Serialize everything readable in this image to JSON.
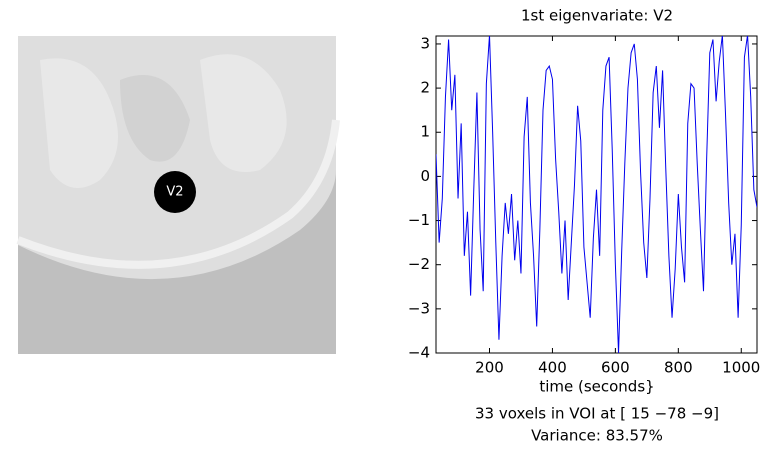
{
  "chart_data": {
    "type": "line",
    "title": "1st eigenvariate: V2",
    "xlabel": "time (seconds}",
    "image_label": "V2",
    "notes": [
      "33 voxels in VOI at [ 15 −78  −9]",
      "Variance: 83.57%"
    ],
    "xlim": [
      30,
      1050
    ],
    "ylim": [
      -4,
      3.18
    ],
    "xticks": [
      200,
      400,
      600,
      800,
      1000
    ],
    "yticks": [
      {
        "value": -4,
        "label": "−4"
      },
      {
        "value": -3,
        "label": "−3"
      },
      {
        "value": -2,
        "label": "−2"
      },
      {
        "value": -1,
        "label": "−1"
      },
      0,
      1,
      2,
      3
    ],
    "x": [
      30,
      40,
      50,
      60,
      70,
      80,
      90,
      100,
      110,
      120,
      130,
      140,
      150,
      160,
      170,
      180,
      190,
      200,
      210,
      220,
      230,
      240,
      250,
      260,
      270,
      280,
      290,
      300,
      310,
      320,
      330,
      340,
      350,
      360,
      370,
      380,
      390,
      400,
      410,
      420,
      430,
      440,
      450,
      460,
      470,
      480,
      490,
      500,
      510,
      520,
      530,
      540,
      550,
      560,
      570,
      580,
      590,
      600,
      610,
      620,
      630,
      640,
      650,
      660,
      670,
      680,
      690,
      700,
      710,
      720,
      730,
      740,
      750,
      760,
      770,
      780,
      790,
      800,
      810,
      820,
      830,
      840,
      850,
      860,
      870,
      880,
      890,
      900,
      910,
      920,
      930,
      940,
      950,
      960,
      970,
      980,
      990,
      1000,
      1010,
      1020,
      1030,
      1040,
      1050
    ],
    "series": [
      {
        "color": "#0000ee",
        "values": [
          0.5,
          -1.5,
          -0.5,
          1.8,
          3.1,
          1.5,
          2.3,
          -0.5,
          1.2,
          -1.8,
          -0.8,
          -2.7,
          -0.3,
          1.9,
          -1.2,
          -2.6,
          2.1,
          3.2,
          1.0,
          -1.5,
          -3.7,
          -1.8,
          -0.6,
          -1.3,
          -0.4,
          -1.9,
          -1.0,
          -2.2,
          0.9,
          1.8,
          -0.6,
          -1.8,
          -3.4,
          -1.2,
          1.5,
          2.4,
          2.5,
          2.2,
          0.4,
          -0.8,
          -2.2,
          -1.0,
          -2.8,
          -1.5,
          -0.2,
          1.6,
          0.8,
          -1.6,
          -2.4,
          -3.2,
          -1.4,
          -0.3,
          -1.8,
          1.5,
          2.5,
          2.7,
          0.6,
          -2.0,
          -4.0,
          -1.7,
          0.3,
          2.0,
          2.8,
          3.0,
          2.2,
          0.1,
          -1.5,
          -2.3,
          -0.5,
          1.9,
          2.5,
          1.1,
          2.4,
          0.2,
          -1.8,
          -3.2,
          -2.1,
          -0.4,
          -1.6,
          -2.4,
          1.2,
          2.1,
          2.0,
          0.3,
          -1.2,
          -2.6,
          0.4,
          2.8,
          3.1,
          1.7,
          2.6,
          3.2,
          1.4,
          -0.6,
          -2.0,
          -1.3,
          -3.2,
          -1.1,
          2.7,
          3.2,
          1.8,
          -0.3,
          -0.7
        ]
      }
    ]
  }
}
